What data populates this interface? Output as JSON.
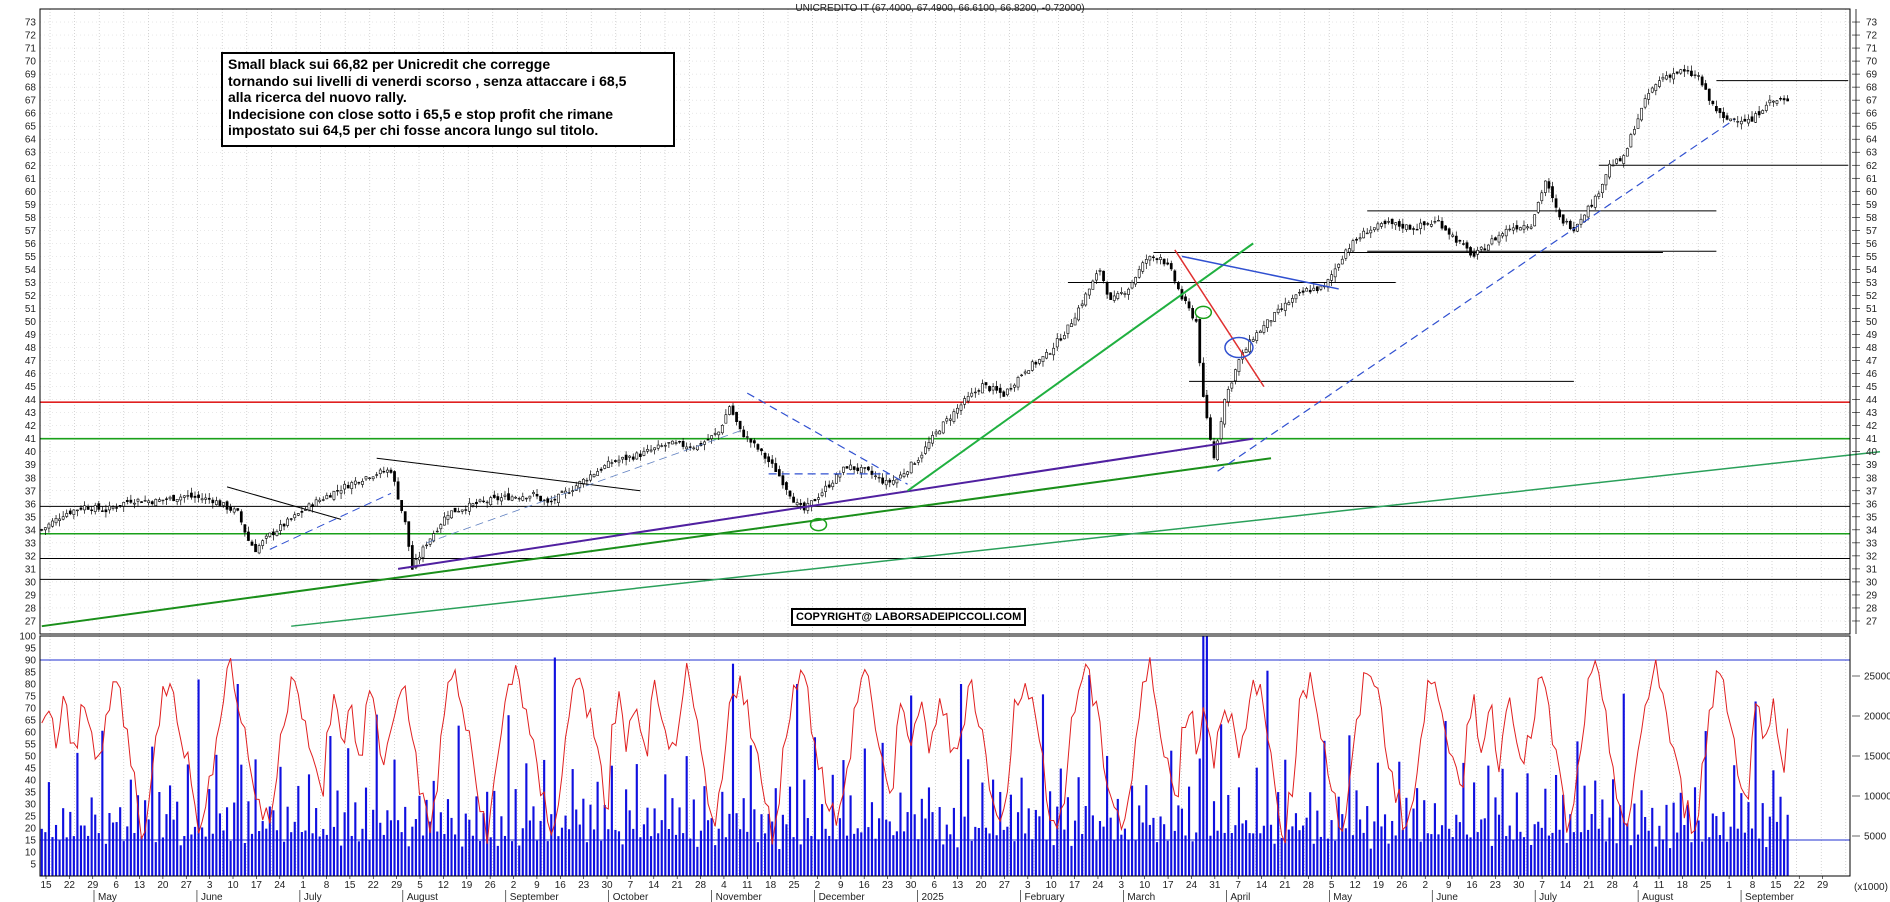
{
  "chart_data": [
    {
      "type": "candlestick",
      "title": "UNICREDITO IT (67.4000, 67.4900, 66.6100, 66.8200, -0.72000)",
      "ylim": [
        26,
        74
      ],
      "y_ticks": [
        27,
        28,
        29,
        30,
        31,
        32,
        33,
        34,
        35,
        36,
        37,
        38,
        39,
        40,
        41,
        42,
        43,
        44,
        45,
        46,
        47,
        48,
        49,
        50,
        51,
        52,
        53,
        54,
        55,
        56,
        57,
        58,
        59,
        60,
        61,
        62,
        63,
        64,
        65,
        66,
        67,
        68,
        69,
        70,
        71,
        72,
        73
      ],
      "trading_days": 335,
      "price_anchors": [
        [
          0,
          34.0
        ],
        [
          6,
          35.2
        ],
        [
          12,
          35.8
        ],
        [
          18,
          35.5
        ],
        [
          25,
          36.3
        ],
        [
          32,
          36.2
        ],
        [
          40,
          36.6
        ],
        [
          48,
          36.3
        ],
        [
          55,
          35.3
        ],
        [
          58,
          33.2
        ],
        [
          60,
          32.5
        ],
        [
          64,
          33.6
        ],
        [
          70,
          34.8
        ],
        [
          76,
          36.0
        ],
        [
          84,
          37.2
        ],
        [
          92,
          38.2
        ],
        [
          98,
          38.6
        ],
        [
          102,
          34.5
        ],
        [
          104,
          31.0
        ],
        [
          108,
          33.0
        ],
        [
          114,
          35.3
        ],
        [
          122,
          36.0
        ],
        [
          130,
          36.5
        ],
        [
          138,
          36.7
        ],
        [
          142,
          36.0
        ],
        [
          148,
          37.0
        ],
        [
          154,
          38.2
        ],
        [
          160,
          39.2
        ],
        [
          168,
          39.8
        ],
        [
          176,
          40.6
        ],
        [
          184,
          40.4
        ],
        [
          190,
          41.5
        ],
        [
          193,
          43.5
        ],
        [
          196,
          41.6
        ],
        [
          201,
          40.2
        ],
        [
          206,
          38.6
        ],
        [
          212,
          35.9
        ],
        [
          214,
          35.5
        ],
        [
          220,
          37.2
        ],
        [
          226,
          38.9
        ],
        [
          232,
          38.4
        ],
        [
          237,
          37.6
        ],
        [
          240,
          37.9
        ],
        [
          246,
          39.5
        ],
        [
          252,
          41.8
        ],
        [
          258,
          43.6
        ],
        [
          264,
          45.1
        ],
        [
          270,
          44.4
        ],
        [
          276,
          46.3
        ],
        [
          282,
          47.4
        ],
        [
          288,
          49.5
        ],
        [
          294,
          52.5
        ],
        [
          297,
          54.0
        ],
        [
          300,
          51.5
        ],
        [
          305,
          52.6
        ],
        [
          310,
          54.8
        ],
        [
          314,
          55.0
        ],
        [
          317,
          53.8
        ],
        [
          320,
          51.8
        ],
        [
          324,
          50.0
        ],
        [
          326,
          44.0
        ],
        [
          329,
          39.5
        ],
        [
          332,
          44.0
        ],
        [
          336,
          47.0
        ],
        [
          340,
          48.8
        ],
        [
          345,
          50.2
        ],
        [
          350,
          51.5
        ],
        [
          355,
          52.4
        ],
        [
          360,
          52.6
        ],
        [
          366,
          55.5
        ],
        [
          372,
          57.0
        ],
        [
          378,
          57.5
        ],
        [
          385,
          57.2
        ],
        [
          392,
          57.7
        ],
        [
          398,
          56.0
        ],
        [
          402,
          55.0
        ],
        [
          407,
          56.2
        ],
        [
          412,
          57.2
        ],
        [
          418,
          57.5
        ],
        [
          422,
          60.8
        ],
        [
          426,
          57.9
        ],
        [
          430,
          57.2
        ],
        [
          433,
          58.4
        ],
        [
          436,
          59.4
        ],
        [
          440,
          62.0
        ],
        [
          444,
          62.5
        ],
        [
          447,
          65.0
        ],
        [
          451,
          67.5
        ],
        [
          455,
          68.8
        ],
        [
          460,
          69.2
        ],
        [
          465,
          68.8
        ],
        [
          468,
          67.0
        ],
        [
          472,
          65.5
        ],
        [
          476,
          65.6
        ],
        [
          480,
          65.4
        ],
        [
          484,
          66.8
        ],
        [
          488,
          67.0
        ],
        [
          490,
          66.82
        ]
      ],
      "horizontal_levels": [
        {
          "y": 43.8,
          "color": "#e02020"
        },
        {
          "y": 41.0,
          "color": "#1aa01a"
        },
        {
          "y": 33.7,
          "color": "#1aa01a"
        },
        {
          "y": 35.8,
          "color": "#000000"
        },
        {
          "y": 31.8,
          "color": "#000000"
        },
        {
          "y": 30.2,
          "color": "#000000"
        }
      ],
      "resistance_segments": [
        {
          "x1": 288,
          "x2": 380,
          "y": 53.0
        },
        {
          "x1": 322,
          "x2": 430,
          "y": 45.4
        },
        {
          "x1": 312,
          "x2": 455,
          "y": 55.3
        },
        {
          "x1": 372,
          "x2": 470,
          "y": 58.5
        },
        {
          "x1": 372,
          "x2": 470,
          "y": 55.4
        },
        {
          "x1": 437,
          "x2": 507,
          "y": 62.0
        },
        {
          "x1": 470,
          "x2": 507,
          "y": 68.5
        }
      ],
      "trendlines": [
        {
          "x1": 0,
          "y1": 26.6,
          "x2": 345,
          "y2": 39.5,
          "color": "#1a8f1a",
          "width": 2
        },
        {
          "x1": 70,
          "y1": 26.6,
          "x2": 560,
          "y2": 40.0,
          "color": "#2aa05a",
          "width": 1.5
        },
        {
          "x1": 100,
          "y1": 31.0,
          "x2": 340,
          "y2": 41.0,
          "color": "#5020a0",
          "width": 2
        },
        {
          "x1": 243,
          "y1": 37.0,
          "x2": 340,
          "y2": 56.0,
          "color": "#20b040",
          "width": 2
        },
        {
          "x1": 318,
          "y1": 55.5,
          "x2": 343,
          "y2": 45.0,
          "color": "#e03030",
          "width": 1.5
        },
        {
          "x1": 320,
          "y1": 55.0,
          "x2": 364,
          "y2": 52.5,
          "color": "#3050d0",
          "width": 1.5
        },
        {
          "x1": 52,
          "y1": 37.3,
          "x2": 84,
          "y2": 34.8,
          "color": "#000000",
          "width": 1
        },
        {
          "x1": 94,
          "y1": 39.5,
          "x2": 168,
          "y2": 37.0,
          "color": "#000000",
          "width": 1
        },
        {
          "x1": 198,
          "y1": 44.5,
          "x2": 243,
          "y2": 37.5,
          "color": "#3050d0",
          "width": 1.2,
          "dash": true
        },
        {
          "x1": 204,
          "x2": 238,
          "y1": 38.3,
          "y2": 38.3,
          "color": "#3050d0",
          "width": 1.2,
          "dash": true
        },
        {
          "x1": 64,
          "y1": 32.5,
          "x2": 98,
          "y2": 36.8,
          "color": "#3050d0",
          "width": 1,
          "dash": true
        },
        {
          "x1": 108,
          "y1": 33.0,
          "x2": 196,
          "y2": 41.6,
          "color": "#6080c0",
          "width": 0.8,
          "dash": true
        },
        {
          "x1": 330,
          "y1": 38.5,
          "x2": 475,
          "y2": 65.5,
          "color": "#3050d0",
          "width": 1.2,
          "dash": true
        }
      ],
      "annotations": [
        {
          "x": 218,
          "y": 34.4,
          "rx": 8,
          "ry": 6,
          "color": "#1aa01a"
        },
        {
          "x": 326,
          "y": 50.7,
          "rx": 8,
          "ry": 6,
          "color": "#1aa01a"
        },
        {
          "x": 336,
          "y": 48.0,
          "rx": 14,
          "ry": 10,
          "color": "#3050d0"
        }
      ],
      "month_labels": [
        "May",
        "June",
        "July",
        "August",
        "September",
        "October",
        "November",
        "December",
        "2025",
        "February",
        "March",
        "April",
        "May",
        "June",
        "July",
        "August",
        "September"
      ],
      "day_labels": [
        "15",
        "22",
        "29",
        "6",
        "13",
        "20",
        "27",
        "3",
        "10",
        "17",
        "24",
        "1",
        "8",
        "15",
        "22",
        "29",
        "5",
        "12",
        "19",
        "26",
        "2",
        "9",
        "16",
        "23",
        "30",
        "7",
        "14",
        "21",
        "28",
        "4",
        "11",
        "18",
        "25",
        "2",
        "9",
        "16",
        "23",
        "30",
        "6",
        "13",
        "20",
        "27",
        "3",
        "10",
        "17",
        "24",
        "3",
        "10",
        "17",
        "24",
        "31",
        "7",
        "14",
        "21",
        "28",
        "5",
        "12",
        "19",
        "26",
        "2",
        "9",
        "16",
        "23",
        "30",
        "7",
        "14",
        "21",
        "28",
        "4",
        "11",
        "18",
        "25",
        "1",
        "8",
        "15",
        "22",
        "29"
      ]
    },
    {
      "type": "line+bar",
      "panel": "oscillator-and-volume",
      "left_ylim": [
        0,
        100
      ],
      "left_ticks": [
        5,
        10,
        15,
        20,
        25,
        30,
        35,
        40,
        45,
        50,
        55,
        60,
        65,
        70,
        75,
        80,
        85,
        90,
        95,
        100
      ],
      "right_ticks": [
        "5000",
        "10000",
        "15000",
        "20000",
        "25000"
      ],
      "right_unit": "(x1000)",
      "reference_levels": [
        90,
        15
      ],
      "volume_max": 30000,
      "oscillator_pattern": [
        60,
        68,
        72,
        64,
        55,
        60,
        70,
        66,
        58,
        50,
        56,
        68,
        75,
        70,
        62,
        55,
        48,
        52,
        60,
        70,
        78,
        82,
        74,
        65,
        58,
        50,
        40,
        30,
        22,
        20,
        28,
        40,
        55,
        68,
        76,
        80,
        85,
        78,
        70,
        62,
        54,
        46,
        38,
        30,
        24,
        20,
        26,
        35,
        48,
        60,
        70,
        78,
        84,
        88,
        82,
        74,
        66,
        58,
        50,
        42,
        36,
        30,
        26,
        22,
        25,
        32,
        42,
        55,
        66,
        75,
        82,
        86,
        80,
        72,
        64,
        56,
        48,
        40,
        34,
        30
      ],
      "volume_pattern": [
        6800,
        5200,
        9400,
        4800,
        7600,
        5900,
        11200,
        4300,
        8100,
        6200,
        13800,
        5400,
        7300,
        4900,
        9800,
        6700,
        5100,
        15200,
        4700,
        8600,
        7000,
        5600,
        10500,
        4400,
        6900,
        12400,
        5300,
        8800,
        4600,
        7700,
        6100,
        18900,
        5000,
        9200,
        4800,
        7200,
        14100,
        5700,
        8300,
        4500,
        6600,
        11700,
        5200,
        7900,
        24600,
        6400,
        4900,
        8700,
        5800,
        13200
      ]
    }
  ],
  "overlay": {
    "note_lines": [
      "Small black sui 66,82 per Unicredit che corregge",
      "tornando sui livelli di venerdi scorso , senza attaccare i 68,5",
      "alla ricerca del nuovo rally.",
      "Indecisione con close sotto i 65,5 e stop profit che rimane",
      "impostato sui 64,5 per chi fosse ancora lungo sul titolo."
    ],
    "copyright": "COPYRIGHT@ LABORSADEIPICCOLI.COM"
  }
}
